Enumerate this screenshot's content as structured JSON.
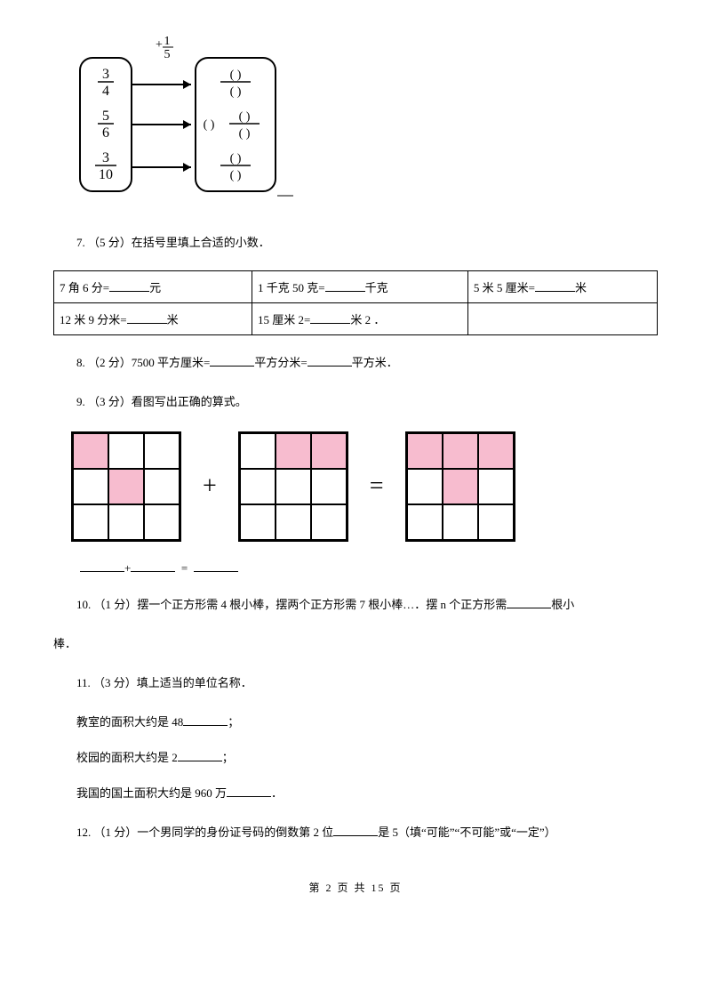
{
  "diagram": {
    "operator_top": "+",
    "operator_frac": {
      "n": "1",
      "d": "5"
    },
    "left_fracs": [
      {
        "n": "3",
        "d": "4"
      },
      {
        "n": "5",
        "d": "6"
      },
      {
        "n": "3",
        "d": "10"
      }
    ],
    "right_placeholders": [
      {
        "prefix": "",
        "top": "(  )",
        "bot": "(  )"
      },
      {
        "prefix": "(  )",
        "top": "(  )",
        "bot": "(  )"
      },
      {
        "prefix": "",
        "top": "(  )",
        "bot": "(  )"
      }
    ],
    "box_stroke": "#000000",
    "box_radius": 14
  },
  "q7": {
    "prefix": "7. （5 分）在括号里填上合适的小数．",
    "rows": [
      [
        {
          "before": "7 角 6 分=",
          "after": "元"
        },
        {
          "before": "1 千克 50 克=",
          "after": "千克"
        },
        {
          "before": "5 米 5 厘米=",
          "after": "米"
        }
      ],
      [
        {
          "before": "12 米 9 分米=",
          "after": "米"
        },
        {
          "before": "15 厘米 2=",
          "after": "米 2 ．"
        },
        {
          "before": "",
          "after": ""
        }
      ]
    ]
  },
  "q8": {
    "text_a": "8. （2 分）7500 平方厘米=",
    "text_b": "平方分米=",
    "text_c": "平方米．"
  },
  "q9": {
    "prefix": "9. （3 分）看图写出正确的算式。",
    "pink_color": "#f7bccf",
    "grid_a": [
      1,
      0,
      0,
      0,
      1,
      0,
      0,
      0,
      0
    ],
    "grid_b": [
      0,
      1,
      1,
      0,
      0,
      0,
      0,
      0,
      0
    ],
    "grid_c": [
      1,
      1,
      1,
      0,
      1,
      0,
      0,
      0,
      0
    ],
    "plus": "+",
    "equals": "=",
    "eq_plus": "+",
    "eq_eq": "="
  },
  "q10": {
    "before": "10.  （1 分）摆一个正方形需 4 根小棒，摆两个正方形需 7 根小棒…．摆 n 个正方形需",
    "after": "根小",
    "line2": "棒．"
  },
  "q11": {
    "prefix": "11. （3 分）填上适当的单位名称．",
    "l1_before": "教室的面积大约是 48",
    "l1_after": "；",
    "l2_before": "校园的面积大约是 2",
    "l2_after": "；",
    "l3_before": "我国的国土面积大约是 960 万",
    "l3_after": "．"
  },
  "q12": {
    "before": "12. （1 分）一个男同学的身份证号码的倒数第 2 位",
    "after": "是 5（填“可能”“不可能”或“一定”）"
  },
  "footer": "第  2  页  共  15  页"
}
